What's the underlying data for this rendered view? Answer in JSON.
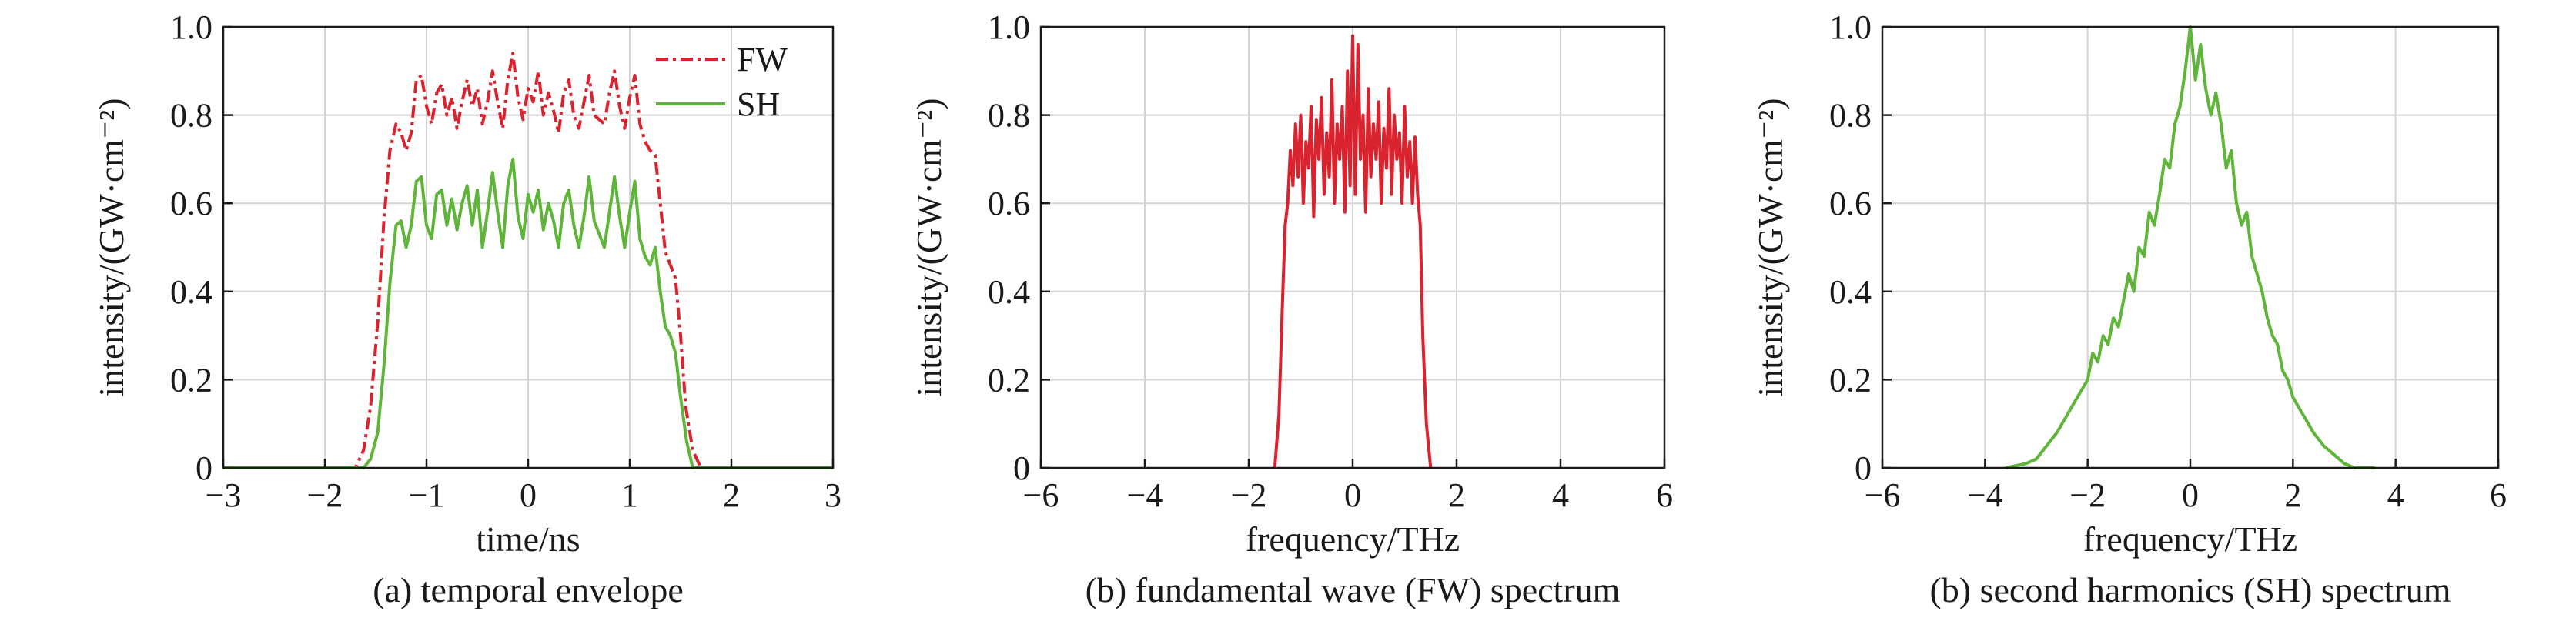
{
  "chart_data": [
    {
      "type": "line",
      "caption": "(a) temporal envelope",
      "xlabel": "time/ns",
      "ylabel": "intensity/(GW·cm⁻²)",
      "xlim": [
        -3,
        3
      ],
      "ylim": [
        0,
        1.0
      ],
      "xticks": [
        -3,
        -2,
        -1,
        0,
        1,
        2,
        3
      ],
      "xtick_labels": [
        "−3",
        "−2",
        "−1",
        "0",
        "1",
        "2",
        "3"
      ],
      "yticks": [
        0,
        0.2,
        0.4,
        0.6,
        0.8,
        1.0
      ],
      "ytick_labels": [
        "0",
        "0.2",
        "0.4",
        "0.6",
        "0.8",
        "1.0"
      ],
      "grid": true,
      "legend": "top-right",
      "series": [
        {
          "name": "FW",
          "color": "#d9232e",
          "style": "dashdot",
          "x": [
            -3.0,
            -1.7,
            -1.62,
            -1.55,
            -1.48,
            -1.42,
            -1.36,
            -1.3,
            -1.25,
            -1.2,
            -1.15,
            -1.1,
            -1.05,
            -1.0,
            -0.95,
            -0.9,
            -0.85,
            -0.8,
            -0.75,
            -0.7,
            -0.65,
            -0.6,
            -0.55,
            -0.5,
            -0.45,
            -0.4,
            -0.35,
            -0.3,
            -0.25,
            -0.2,
            -0.15,
            -0.1,
            -0.05,
            0.0,
            0.05,
            0.1,
            0.15,
            0.2,
            0.25,
            0.3,
            0.35,
            0.4,
            0.45,
            0.5,
            0.55,
            0.6,
            0.65,
            0.7,
            0.75,
            0.8,
            0.85,
            0.9,
            0.95,
            1.0,
            1.05,
            1.1,
            1.15,
            1.2,
            1.25,
            1.3,
            1.35,
            1.4,
            1.45,
            1.5,
            1.55,
            1.62,
            1.7,
            3.0
          ],
          "y": [
            0.0,
            0.0,
            0.04,
            0.14,
            0.33,
            0.56,
            0.72,
            0.78,
            0.76,
            0.72,
            0.76,
            0.88,
            0.89,
            0.82,
            0.78,
            0.85,
            0.87,
            0.8,
            0.84,
            0.77,
            0.83,
            0.88,
            0.82,
            0.86,
            0.78,
            0.83,
            0.9,
            0.83,
            0.77,
            0.88,
            0.94,
            0.84,
            0.79,
            0.86,
            0.83,
            0.9,
            0.8,
            0.85,
            0.81,
            0.76,
            0.85,
            0.88,
            0.8,
            0.77,
            0.83,
            0.89,
            0.8,
            0.79,
            0.78,
            0.85,
            0.9,
            0.82,
            0.77,
            0.84,
            0.89,
            0.78,
            0.74,
            0.72,
            0.71,
            0.6,
            0.49,
            0.46,
            0.43,
            0.3,
            0.14,
            0.04,
            0.0,
            0.0
          ]
        },
        {
          "name": "SH",
          "color": "#5fb53a",
          "style": "solid",
          "x": [
            -3.0,
            -1.62,
            -1.55,
            -1.48,
            -1.42,
            -1.36,
            -1.3,
            -1.25,
            -1.2,
            -1.15,
            -1.1,
            -1.05,
            -1.0,
            -0.95,
            -0.9,
            -0.85,
            -0.8,
            -0.75,
            -0.7,
            -0.65,
            -0.6,
            -0.55,
            -0.5,
            -0.45,
            -0.4,
            -0.35,
            -0.3,
            -0.25,
            -0.2,
            -0.15,
            -0.1,
            -0.05,
            0.0,
            0.05,
            0.1,
            0.15,
            0.2,
            0.25,
            0.3,
            0.35,
            0.4,
            0.45,
            0.5,
            0.55,
            0.6,
            0.65,
            0.7,
            0.75,
            0.8,
            0.85,
            0.9,
            0.95,
            1.0,
            1.05,
            1.1,
            1.15,
            1.2,
            1.25,
            1.3,
            1.35,
            1.4,
            1.45,
            1.5,
            1.56,
            1.62,
            3.0
          ],
          "y": [
            0.0,
            0.0,
            0.02,
            0.08,
            0.23,
            0.42,
            0.55,
            0.56,
            0.5,
            0.55,
            0.65,
            0.66,
            0.55,
            0.52,
            0.62,
            0.63,
            0.55,
            0.61,
            0.54,
            0.6,
            0.64,
            0.55,
            0.63,
            0.5,
            0.58,
            0.67,
            0.58,
            0.5,
            0.64,
            0.7,
            0.57,
            0.52,
            0.62,
            0.58,
            0.63,
            0.54,
            0.6,
            0.56,
            0.5,
            0.6,
            0.63,
            0.55,
            0.5,
            0.57,
            0.66,
            0.56,
            0.53,
            0.5,
            0.58,
            0.66,
            0.57,
            0.5,
            0.58,
            0.65,
            0.52,
            0.48,
            0.46,
            0.5,
            0.4,
            0.32,
            0.3,
            0.26,
            0.16,
            0.06,
            0.0,
            0.0
          ]
        }
      ]
    },
    {
      "type": "line",
      "caption": "(b) fundamental wave (FW) spectrum",
      "xlabel": "frequency/THz",
      "ylabel": "intensity/(GW·cm⁻²)",
      "xlim": [
        -6,
        6
      ],
      "ylim": [
        0,
        1.0
      ],
      "xticks": [
        -6,
        -4,
        -2,
        0,
        2,
        4,
        6
      ],
      "xtick_labels": [
        "−6",
        "−4",
        "−2",
        "0",
        "2",
        "4",
        "6"
      ],
      "yticks": [
        0,
        0.2,
        0.4,
        0.6,
        0.8,
        1.0
      ],
      "ytick_labels": [
        "0",
        "0.2",
        "0.4",
        "0.6",
        "0.8",
        "1.0"
      ],
      "grid": true,
      "series": [
        {
          "name": "FW",
          "color": "#d9232e",
          "style": "solid",
          "x": [
            -1.5,
            -1.42,
            -1.35,
            -1.3,
            -1.25,
            -1.2,
            -1.15,
            -1.1,
            -1.05,
            -1.0,
            -0.95,
            -0.9,
            -0.85,
            -0.8,
            -0.75,
            -0.7,
            -0.65,
            -0.6,
            -0.55,
            -0.5,
            -0.45,
            -0.4,
            -0.35,
            -0.3,
            -0.25,
            -0.2,
            -0.15,
            -0.1,
            -0.05,
            0.0,
            0.05,
            0.1,
            0.15,
            0.2,
            0.25,
            0.3,
            0.35,
            0.4,
            0.45,
            0.5,
            0.55,
            0.6,
            0.65,
            0.7,
            0.75,
            0.8,
            0.85,
            0.9,
            0.95,
            1.0,
            1.05,
            1.1,
            1.15,
            1.2,
            1.25,
            1.3,
            1.35,
            1.42,
            1.5
          ],
          "y": [
            0.0,
            0.12,
            0.38,
            0.55,
            0.6,
            0.72,
            0.64,
            0.78,
            0.66,
            0.8,
            0.6,
            0.74,
            0.68,
            0.82,
            0.57,
            0.79,
            0.7,
            0.84,
            0.62,
            0.76,
            0.66,
            0.88,
            0.6,
            0.78,
            0.7,
            0.82,
            0.58,
            0.9,
            0.64,
            0.98,
            0.62,
            0.96,
            0.7,
            0.8,
            0.58,
            0.86,
            0.66,
            0.78,
            0.7,
            0.83,
            0.6,
            0.77,
            0.68,
            0.86,
            0.62,
            0.8,
            0.7,
            0.76,
            0.6,
            0.82,
            0.66,
            0.74,
            0.6,
            0.75,
            0.62,
            0.55,
            0.3,
            0.1,
            0.0
          ]
        }
      ]
    },
    {
      "type": "line",
      "caption": "(b) second harmonics (SH) spectrum",
      "xlabel": "frequency/THz",
      "ylabel": "intensity/(GW·cm⁻²)",
      "xlim": [
        -6,
        6
      ],
      "ylim": [
        0,
        1.0
      ],
      "xticks": [
        -6,
        -4,
        -2,
        0,
        2,
        4,
        6
      ],
      "xtick_labels": [
        "−6",
        "−4",
        "−2",
        "0",
        "2",
        "4",
        "6"
      ],
      "yticks": [
        0,
        0.2,
        0.4,
        0.6,
        0.8,
        1.0
      ],
      "ytick_labels": [
        "0",
        "0.2",
        "0.4",
        "0.6",
        "0.8",
        "1.0"
      ],
      "grid": true,
      "series": [
        {
          "name": "SH",
          "color": "#5fb53a",
          "style": "solid",
          "x": [
            -3.6,
            -3.2,
            -3.0,
            -2.8,
            -2.6,
            -2.4,
            -2.2,
            -2.0,
            -1.9,
            -1.8,
            -1.7,
            -1.6,
            -1.5,
            -1.4,
            -1.3,
            -1.2,
            -1.1,
            -1.0,
            -0.9,
            -0.8,
            -0.7,
            -0.6,
            -0.5,
            -0.4,
            -0.3,
            -0.2,
            -0.1,
            0.0,
            0.1,
            0.2,
            0.3,
            0.4,
            0.5,
            0.6,
            0.7,
            0.8,
            0.9,
            1.0,
            1.1,
            1.2,
            1.3,
            1.4,
            1.5,
            1.6,
            1.7,
            1.8,
            1.9,
            2.0,
            2.2,
            2.4,
            2.6,
            2.8,
            3.0,
            3.2,
            3.6
          ],
          "y": [
            0.0,
            0.01,
            0.02,
            0.05,
            0.08,
            0.12,
            0.16,
            0.2,
            0.26,
            0.24,
            0.3,
            0.28,
            0.34,
            0.32,
            0.38,
            0.44,
            0.4,
            0.5,
            0.48,
            0.58,
            0.55,
            0.62,
            0.7,
            0.68,
            0.78,
            0.82,
            0.9,
            1.0,
            0.88,
            0.96,
            0.86,
            0.8,
            0.85,
            0.78,
            0.68,
            0.72,
            0.6,
            0.55,
            0.58,
            0.48,
            0.44,
            0.4,
            0.34,
            0.3,
            0.28,
            0.22,
            0.2,
            0.16,
            0.12,
            0.08,
            0.05,
            0.03,
            0.01,
            0.0,
            0.0
          ]
        }
      ]
    }
  ]
}
